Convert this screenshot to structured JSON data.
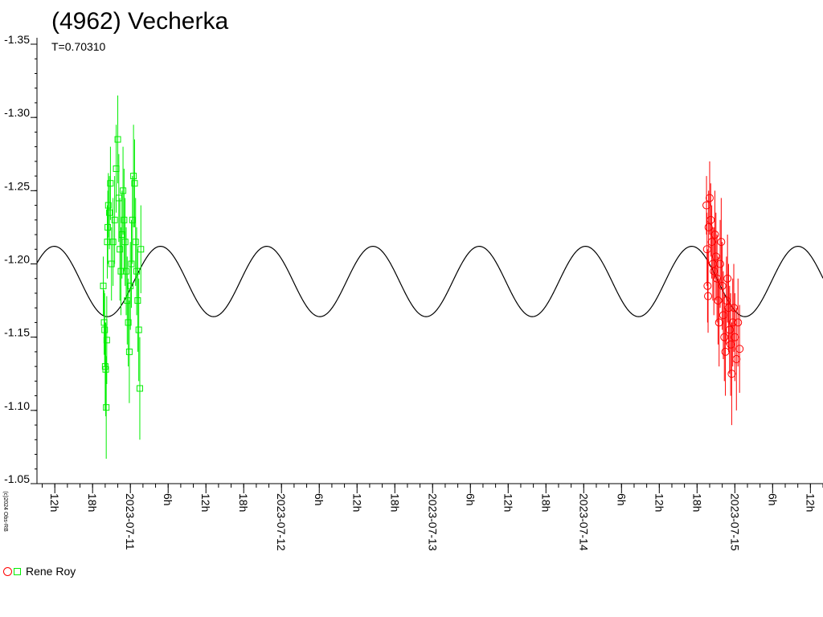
{
  "chart_data": {
    "type": "scatter",
    "title": "(4962) Vecherka",
    "subtitle": "T=0.70310",
    "ylim": [
      -1.35,
      -1.05
    ],
    "y_inverted": true,
    "y_ticks": [
      "-1.35",
      "-1.30",
      "-1.25",
      "-1.20",
      "-1.15",
      "-1.10",
      "-1.05"
    ],
    "x_range": [
      "2023-07-10T09:10",
      "2023-07-15T14:00"
    ],
    "x_tick_labels": [
      {
        "label": "12h",
        "t": "2023-07-10T12:00"
      },
      {
        "label": "18h",
        "t": "2023-07-10T18:00"
      },
      {
        "label": "2023-07-11",
        "t": "2023-07-11T00:00"
      },
      {
        "label": "6h",
        "t": "2023-07-11T06:00"
      },
      {
        "label": "12h",
        "t": "2023-07-11T12:00"
      },
      {
        "label": "18h",
        "t": "2023-07-11T18:00"
      },
      {
        "label": "2023-07-12",
        "t": "2023-07-12T00:00"
      },
      {
        "label": "6h",
        "t": "2023-07-12T06:00"
      },
      {
        "label": "12h",
        "t": "2023-07-12T12:00"
      },
      {
        "label": "18h",
        "t": "2023-07-12T18:00"
      },
      {
        "label": "2023-07-13",
        "t": "2023-07-13T00:00"
      },
      {
        "label": "6h",
        "t": "2023-07-13T06:00"
      },
      {
        "label": "12h",
        "t": "2023-07-13T12:00"
      },
      {
        "label": "18h",
        "t": "2023-07-13T18:00"
      },
      {
        "label": "2023-07-14",
        "t": "2023-07-14T00:00"
      },
      {
        "label": "6h",
        "t": "2023-07-14T06:00"
      },
      {
        "label": "12h",
        "t": "2023-07-14T12:00"
      },
      {
        "label": "18h",
        "t": "2023-07-14T18:00"
      },
      {
        "label": "2023-07-15",
        "t": "2023-07-15T00:00"
      },
      {
        "label": "6h",
        "t": "2023-07-15T06:00"
      },
      {
        "label": "12h",
        "t": "2023-07-15T12:00"
      }
    ],
    "model_curve": {
      "period_days": 0.7031,
      "mean": -1.188,
      "amplitude": 0.024,
      "color": "#000000"
    },
    "series": [
      {
        "name": "Rene Roy",
        "marker": "square",
        "color": "#00ee00",
        "points": [
          {
            "t": "2023-07-10T19:42",
            "y": -1.185,
            "err": 0.02
          },
          {
            "t": "2023-07-10T19:50",
            "y": -1.16,
            "err": 0.022
          },
          {
            "t": "2023-07-10T19:55",
            "y": -1.155,
            "err": 0.025
          },
          {
            "t": "2023-07-10T20:00",
            "y": -1.13,
            "err": 0.03
          },
          {
            "t": "2023-07-10T20:05",
            "y": -1.128,
            "err": 0.032
          },
          {
            "t": "2023-07-10T20:10",
            "y": -1.102,
            "err": 0.035
          },
          {
            "t": "2023-07-10T20:15",
            "y": -1.148,
            "err": 0.03
          },
          {
            "t": "2023-07-10T20:20",
            "y": -1.215,
            "err": 0.025
          },
          {
            "t": "2023-07-10T20:25",
            "y": -1.225,
            "err": 0.025
          },
          {
            "t": "2023-07-10T20:30",
            "y": -1.24,
            "err": 0.022
          },
          {
            "t": "2023-07-10T20:40",
            "y": -1.235,
            "err": 0.025
          },
          {
            "t": "2023-07-10T20:50",
            "y": -1.255,
            "err": 0.025
          },
          {
            "t": "2023-07-10T21:00",
            "y": -1.2,
            "err": 0.025
          },
          {
            "t": "2023-07-10T21:15",
            "y": -1.215,
            "err": 0.03
          },
          {
            "t": "2023-07-10T21:30",
            "y": -1.23,
            "err": 0.03
          },
          {
            "t": "2023-07-10T21:45",
            "y": -1.265,
            "err": 0.03
          },
          {
            "t": "2023-07-10T22:00",
            "y": -1.285,
            "err": 0.03
          },
          {
            "t": "2023-07-10T22:10",
            "y": -1.245,
            "err": 0.03
          },
          {
            "t": "2023-07-10T22:20",
            "y": -1.21,
            "err": 0.035
          },
          {
            "t": "2023-07-10T22:30",
            "y": -1.195,
            "err": 0.03
          },
          {
            "t": "2023-07-10T22:40",
            "y": -1.22,
            "err": 0.03
          },
          {
            "t": "2023-07-10T22:50",
            "y": -1.25,
            "err": 0.03
          },
          {
            "t": "2023-07-10T23:00",
            "y": -1.23,
            "err": 0.035
          },
          {
            "t": "2023-07-10T23:10",
            "y": -1.215,
            "err": 0.03
          },
          {
            "t": "2023-07-10T23:20",
            "y": -1.195,
            "err": 0.03
          },
          {
            "t": "2023-07-10T23:30",
            "y": -1.175,
            "err": 0.03
          },
          {
            "t": "2023-07-10T23:40",
            "y": -1.16,
            "err": 0.03
          },
          {
            "t": "2023-07-10T23:50",
            "y": -1.14,
            "err": 0.035
          },
          {
            "t": "2023-07-11T00:00",
            "y": -1.185,
            "err": 0.03
          },
          {
            "t": "2023-07-11T00:10",
            "y": -1.2,
            "err": 0.03
          },
          {
            "t": "2023-07-11T00:20",
            "y": -1.23,
            "err": 0.03
          },
          {
            "t": "2023-07-11T00:30",
            "y": -1.26,
            "err": 0.035
          },
          {
            "t": "2023-07-11T00:40",
            "y": -1.255,
            "err": 0.03
          },
          {
            "t": "2023-07-11T00:50",
            "y": -1.215,
            "err": 0.03
          },
          {
            "t": "2023-07-11T01:00",
            "y": -1.195,
            "err": 0.03
          },
          {
            "t": "2023-07-11T01:10",
            "y": -1.175,
            "err": 0.035
          },
          {
            "t": "2023-07-11T01:20",
            "y": -1.155,
            "err": 0.035
          },
          {
            "t": "2023-07-11T01:30",
            "y": -1.115,
            "err": 0.035
          },
          {
            "t": "2023-07-11T01:40",
            "y": -1.21,
            "err": 0.03
          }
        ]
      },
      {
        "name": "",
        "marker": "circle",
        "color": "#ff0000",
        "points": [
          {
            "t": "2023-07-14T19:30",
            "y": -1.24,
            "err": 0.02
          },
          {
            "t": "2023-07-14T19:35",
            "y": -1.21,
            "err": 0.025
          },
          {
            "t": "2023-07-14T19:40",
            "y": -1.185,
            "err": 0.025
          },
          {
            "t": "2023-07-14T19:45",
            "y": -1.178,
            "err": 0.025
          },
          {
            "t": "2023-07-14T19:50",
            "y": -1.225,
            "err": 0.025
          },
          {
            "t": "2023-07-14T20:00",
            "y": -1.245,
            "err": 0.025
          },
          {
            "t": "2023-07-14T20:10",
            "y": -1.23,
            "err": 0.025
          },
          {
            "t": "2023-07-14T20:20",
            "y": -1.215,
            "err": 0.025
          },
          {
            "t": "2023-07-14T20:30",
            "y": -1.2,
            "err": 0.025
          },
          {
            "t": "2023-07-14T20:40",
            "y": -1.195,
            "err": 0.03
          },
          {
            "t": "2023-07-14T20:50",
            "y": -1.22,
            "err": 0.03
          },
          {
            "t": "2023-07-14T21:00",
            "y": -1.205,
            "err": 0.03
          },
          {
            "t": "2023-07-14T21:10",
            "y": -1.19,
            "err": 0.03
          },
          {
            "t": "2023-07-14T21:20",
            "y": -1.175,
            "err": 0.03
          },
          {
            "t": "2023-07-14T21:30",
            "y": -1.16,
            "err": 0.03
          },
          {
            "t": "2023-07-14T21:40",
            "y": -1.2,
            "err": 0.03
          },
          {
            "t": "2023-07-14T21:50",
            "y": -1.215,
            "err": 0.03
          },
          {
            "t": "2023-07-14T22:00",
            "y": -1.185,
            "err": 0.03
          },
          {
            "t": "2023-07-14T22:10",
            "y": -1.165,
            "err": 0.03
          },
          {
            "t": "2023-07-14T22:20",
            "y": -1.15,
            "err": 0.03
          },
          {
            "t": "2023-07-14T22:30",
            "y": -1.14,
            "err": 0.03
          },
          {
            "t": "2023-07-14T22:40",
            "y": -1.175,
            "err": 0.03
          },
          {
            "t": "2023-07-14T22:50",
            "y": -1.19,
            "err": 0.03
          },
          {
            "t": "2023-07-14T23:00",
            "y": -1.17,
            "err": 0.03
          },
          {
            "t": "2023-07-14T23:10",
            "y": -1.155,
            "err": 0.03
          },
          {
            "t": "2023-07-14T23:20",
            "y": -1.145,
            "err": 0.035
          },
          {
            "t": "2023-07-14T23:30",
            "y": -1.125,
            "err": 0.035
          },
          {
            "t": "2023-07-14T23:40",
            "y": -1.16,
            "err": 0.03
          },
          {
            "t": "2023-07-14T23:50",
            "y": -1.17,
            "err": 0.03
          },
          {
            "t": "2023-07-15T00:00",
            "y": -1.15,
            "err": 0.03
          },
          {
            "t": "2023-07-15T00:15",
            "y": -1.135,
            "err": 0.035
          },
          {
            "t": "2023-07-15T00:30",
            "y": -1.16,
            "err": 0.03
          },
          {
            "t": "2023-07-15T00:45",
            "y": -1.142,
            "err": 0.03
          }
        ]
      }
    ]
  },
  "legend": {
    "label": "Rene Roy"
  },
  "credit": "(c)2024 Obs-RB"
}
